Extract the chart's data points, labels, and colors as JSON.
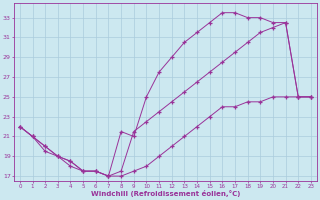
{
  "xlabel": "Windchill (Refroidissement éolien,°C)",
  "bg_color": "#cce8f0",
  "line_color": "#993399",
  "grid_color": "#aaccdd",
  "xlim": [
    -0.5,
    23.5
  ],
  "ylim": [
    16.5,
    34.5
  ],
  "yticks": [
    17,
    19,
    21,
    23,
    25,
    27,
    29,
    31,
    33
  ],
  "xticks": [
    0,
    1,
    2,
    3,
    4,
    5,
    6,
    7,
    8,
    9,
    10,
    11,
    12,
    13,
    14,
    15,
    16,
    17,
    18,
    19,
    20,
    21,
    22,
    23
  ],
  "line1_x": [
    0,
    1,
    2,
    3,
    4,
    5,
    6,
    7,
    8,
    9,
    10,
    11,
    12,
    13,
    14,
    15,
    16,
    17,
    18,
    19,
    20,
    21,
    22,
    23
  ],
  "line1_y": [
    22,
    21,
    19.5,
    19,
    18,
    17.5,
    17.5,
    17,
    21.5,
    21,
    25,
    27.5,
    29.0,
    30.5,
    31.5,
    32.5,
    33.5,
    33.5,
    33.0,
    33.0,
    32.5,
    32.5,
    25.0,
    25.0
  ],
  "line2_x": [
    0,
    1,
    2,
    3,
    4,
    5,
    6,
    7,
    8,
    9,
    10,
    11,
    12,
    13,
    14,
    15,
    16,
    17,
    18,
    19,
    20,
    21,
    22,
    23
  ],
  "line2_y": [
    22,
    21,
    20,
    19,
    18.5,
    17.5,
    17.5,
    17,
    17.5,
    21.5,
    22.5,
    23.5,
    24.5,
    25.5,
    26.5,
    27.5,
    28.5,
    29.5,
    30.5,
    31.5,
    32.0,
    32.5,
    25.0,
    25.0
  ],
  "line3_x": [
    0,
    1,
    2,
    3,
    4,
    5,
    6,
    7,
    8,
    9,
    10,
    11,
    12,
    13,
    14,
    15,
    16,
    17,
    18,
    19,
    20,
    21,
    22,
    23
  ],
  "line3_y": [
    22,
    21,
    20,
    19,
    18.5,
    17.5,
    17.5,
    17.0,
    17.0,
    17.5,
    18.0,
    19.0,
    20.0,
    21.0,
    22.0,
    23.0,
    24.0,
    24.0,
    24.5,
    24.5,
    25.0,
    25.0,
    25.0,
    25.0
  ]
}
